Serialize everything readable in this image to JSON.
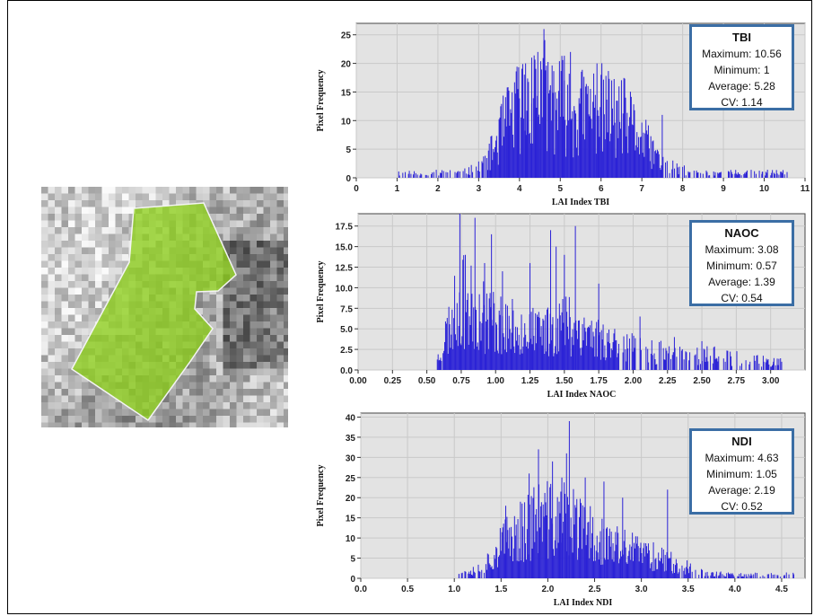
{
  "colors": {
    "bar": "#2b22d6",
    "plot_bg": "#e3e3e3",
    "grid": "#c9c9c9",
    "box_border": "#3b6ea5",
    "polygon": "#8fd11e"
  },
  "image": {
    "label": "field-thumbnail"
  },
  "charts": [
    {
      "key": "tbi",
      "stats": {
        "title": "TBI",
        "maximum": "Maximum: 10.56",
        "minimum": "Minimum: 1",
        "average": "Average: 5.28",
        "cv": "CV: 1.14"
      }
    },
    {
      "key": "naoc",
      "stats": {
        "title": "NAOC",
        "maximum": "Maximum: 3.08",
        "minimum": "Minimum: 0.57",
        "average": "Average: 1.39",
        "cv": "CV: 0.54"
      }
    },
    {
      "key": "ndi",
      "stats": {
        "title": "NDI",
        "maximum": "Maximum: 4.63",
        "minimum": "Minimum: 1.05",
        "average": "Average: 2.19",
        "cv": "CV: 0.52"
      }
    }
  ],
  "chart_data": [
    {
      "type": "bar",
      "xlabel": "LAI Index TBI",
      "ylabel": "Pixel Frequency",
      "xlim": [
        0,
        11
      ],
      "ylim": [
        0,
        27
      ],
      "xticks": [
        0,
        1,
        2,
        3,
        4,
        5,
        6,
        7,
        8,
        9,
        10,
        11
      ],
      "xtick_labels": [
        "0",
        "1",
        "2",
        "3",
        "4",
        "5",
        "6",
        "7",
        "8",
        "9",
        "10",
        "11"
      ],
      "yticks": [
        0,
        5,
        10,
        15,
        20,
        25
      ],
      "ytick_labels": [
        "0",
        "5",
        "10",
        "15",
        "20",
        "25"
      ],
      "grid": true,
      "envelope": {
        "x": [
          1.0,
          2.0,
          2.6,
          3.0,
          3.3,
          3.6,
          3.9,
          4.2,
          4.5,
          4.8,
          5.1,
          5.4,
          5.7,
          6.0,
          6.3,
          6.6,
          6.9,
          7.2,
          7.5,
          7.8,
          8.3,
          9.0,
          10.56
        ],
        "y": [
          1,
          1,
          1,
          2,
          5,
          10,
          14,
          16,
          18,
          16,
          15,
          13,
          14,
          14,
          13,
          12,
          9,
          6,
          3,
          2,
          1,
          1,
          1
        ]
      },
      "peaks": [
        [
          4.6,
          26
        ],
        [
          4.15,
          20
        ],
        [
          4.3,
          21
        ],
        [
          4.45,
          22
        ],
        [
          5.25,
          22
        ],
        [
          5.9,
          20
        ],
        [
          5.1,
          17
        ],
        [
          6.0,
          18
        ],
        [
          3.7,
          15
        ],
        [
          7.5,
          11
        ]
      ],
      "outliers": [
        1.2,
        1.9,
        2.2,
        2.5,
        2.85,
        8.6,
        9.2,
        9.55,
        9.95,
        10.56
      ]
    },
    {
      "type": "bar",
      "xlabel": "LAI Index NAOC",
      "ylabel": "Pixel Frequency",
      "xlim": [
        0,
        3.25
      ],
      "ylim": [
        0,
        19
      ],
      "xticks": [
        0,
        0.25,
        0.5,
        0.75,
        1.0,
        1.25,
        1.5,
        1.75,
        2.0,
        2.25,
        2.5,
        2.75,
        3.0
      ],
      "xtick_labels": [
        "0.00",
        "0.25",
        "0.50",
        "0.75",
        "1.00",
        "1.25",
        "1.50",
        "1.75",
        "2.00",
        "2.25",
        "2.50",
        "2.75",
        "3.00"
      ],
      "yticks": [
        0,
        2.5,
        5,
        7.5,
        10,
        12.5,
        15,
        17.5
      ],
      "ytick_labels": [
        "0.0",
        "2.5",
        "5.0",
        "7.5",
        "10.0",
        "12.5",
        "15.0",
        "17.5"
      ],
      "grid": true,
      "envelope": {
        "x": [
          0.57,
          0.62,
          0.66,
          0.7,
          0.75,
          0.8,
          0.9,
          1.0,
          1.1,
          1.2,
          1.3,
          1.4,
          1.5,
          1.6,
          1.7,
          1.8,
          1.9,
          2.0,
          2.2,
          2.4,
          2.6,
          2.8,
          3.08
        ],
        "y": [
          1,
          4,
          6,
          8,
          10,
          9,
          8,
          7,
          6,
          6,
          5,
          6,
          7,
          6,
          5,
          4,
          4,
          3,
          2.5,
          2,
          2,
          1.5,
          1
        ]
      },
      "peaks": [
        [
          0.74,
          19
        ],
        [
          0.85,
          18.5
        ],
        [
          0.97,
          16.5
        ],
        [
          0.78,
          14
        ],
        [
          0.92,
          13
        ],
        [
          1.05,
          12
        ],
        [
          1.4,
          17
        ],
        [
          1.44,
          15
        ],
        [
          1.5,
          14
        ],
        [
          1.58,
          17.5
        ],
        [
          1.25,
          13
        ],
        [
          1.75,
          10.5
        ],
        [
          2.05,
          6.5
        ],
        [
          2.3,
          4
        ],
        [
          2.5,
          3.5
        ]
      ],
      "outliers": [
        2.85,
        2.9,
        2.95,
        3.02,
        3.08
      ]
    },
    {
      "type": "bar",
      "xlabel": "LAI Index NDI",
      "ylabel": "Pixel Frequency",
      "xlim": [
        0,
        4.75
      ],
      "ylim": [
        0,
        41
      ],
      "xticks": [
        0,
        0.5,
        1.0,
        1.5,
        2.0,
        2.5,
        3.0,
        3.5,
        4.0,
        4.5
      ],
      "xtick_labels": [
        "0.0",
        "0.5",
        "1.0",
        "1.5",
        "2.0",
        "2.5",
        "3.0",
        "3.5",
        "4.0",
        "4.5"
      ],
      "yticks": [
        0,
        5,
        10,
        15,
        20,
        25,
        30,
        35,
        40
      ],
      "ytick_labels": [
        "0",
        "5",
        "10",
        "15",
        "20",
        "25",
        "30",
        "35",
        "40"
      ],
      "grid": true,
      "envelope": {
        "x": [
          1.05,
          1.3,
          1.45,
          1.6,
          1.75,
          1.9,
          2.0,
          2.1,
          2.2,
          2.3,
          2.45,
          2.6,
          2.75,
          2.9,
          3.05,
          3.2,
          3.4,
          3.6,
          3.9,
          4.2,
          4.63
        ],
        "y": [
          2,
          3,
          8,
          12,
          15,
          17,
          17,
          16,
          17,
          15,
          13,
          10,
          9,
          8,
          7,
          6,
          4,
          2,
          1,
          1,
          1
        ]
      },
      "peaks": [
        [
          2.23,
          39
        ],
        [
          1.9,
          32
        ],
        [
          2.2,
          31
        ],
        [
          2.05,
          29
        ],
        [
          1.8,
          26
        ],
        [
          2.15,
          25
        ],
        [
          2.4,
          25
        ],
        [
          2.6,
          24
        ],
        [
          3.28,
          22
        ],
        [
          2.8,
          20
        ],
        [
          1.55,
          18
        ]
      ],
      "outliers": [
        1.05,
        1.2,
        3.8,
        3.95,
        4.1,
        4.35,
        4.63
      ]
    }
  ]
}
